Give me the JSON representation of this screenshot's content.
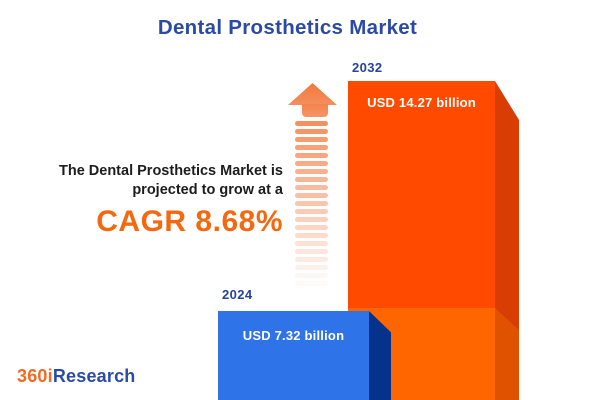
{
  "title": "Dental Prosthetics Market",
  "annotation": {
    "line1": "The Dental Prosthetics Market is",
    "line2": "projected to grow at a",
    "cagr": "CAGR 8.68%"
  },
  "bars": {
    "b2024": {
      "year": "2024",
      "value_label": "USD 7.32 billion"
    },
    "b2032": {
      "year": "2032",
      "value_label": "USD 14.27 billion"
    }
  },
  "logo": {
    "part1": "360i",
    "part2": "Research"
  },
  "colors": {
    "title_navy": "#2B4AA5",
    "year_label_navy": "#28439E",
    "cagr_orange": "#F4690F",
    "bar_2024_front": "#2E74E8",
    "bar_2024_side": "#05338C",
    "bar_2032_front_upper": "#FF4A00",
    "bar_2032_side_upper": "#D83E03",
    "bar_2032_front_lower": "#FF6600",
    "bar_2032_side_lower": "#DF5300",
    "arrow_orange": "#F68A58",
    "logo_orange": "#F26B21",
    "logo_blue": "#2B4BA9"
  },
  "chart_data": {
    "type": "bar",
    "title": "Dental Prosthetics Market",
    "categories": [
      "2024",
      "2032"
    ],
    "values": [
      7.32,
      14.27
    ],
    "unit": "USD billion",
    "value_labels": [
      "USD 7.32 billion",
      "USD 14.27 billion"
    ],
    "series_colors": [
      "#2E74E8",
      "#FF4A00"
    ],
    "annotations": [
      "The Dental Prosthetics Market is projected to grow at a CAGR 8.68%"
    ],
    "cagr_percent": 8.68,
    "style": "3d-bars, no axes, no gridlines, value labels inside bars, growth arrow between bars"
  }
}
